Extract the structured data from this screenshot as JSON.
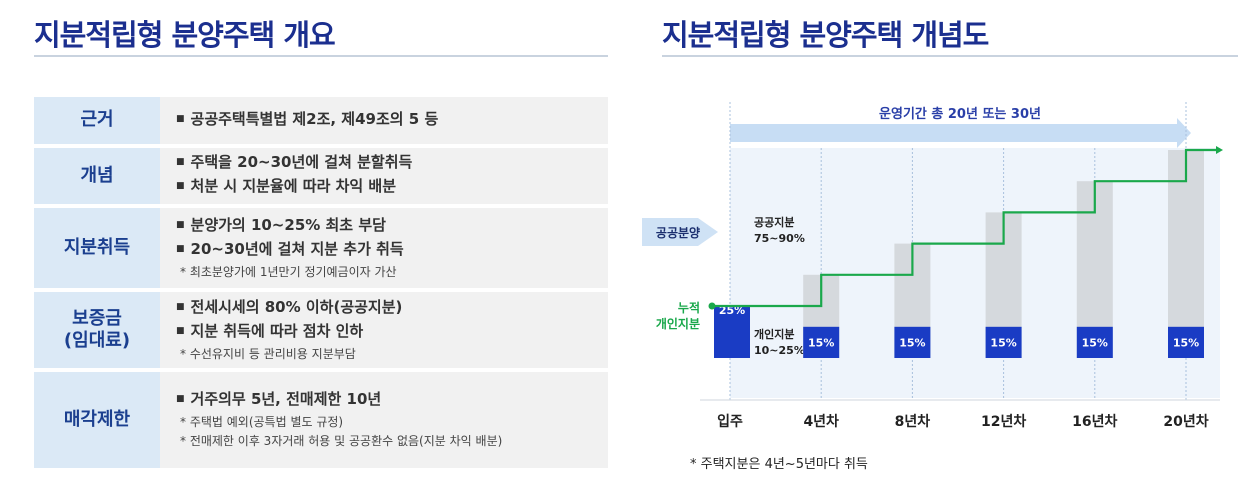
{
  "left": {
    "title": "지분적립형 분양주택 개요",
    "rows": [
      {
        "head": "근거",
        "bullets": [
          "공공주택특별법 제2조, 제49조의 5 등"
        ],
        "notes": []
      },
      {
        "head": "개념",
        "bullets": [
          "주택을 20~30년에 걸쳐 분할취득",
          "처분 시 지분율에 따라 차익 배분"
        ],
        "notes": []
      },
      {
        "head": "지분취득",
        "bullets": [
          "분양가의 10~25% 최초 부담",
          "20~30년에 걸쳐 지분 추가 취득"
        ],
        "notes": [
          "* 최초분양가에 1년만기 정기예금이자 가산"
        ]
      },
      {
        "head": "보증금\n(임대료)",
        "bullets": [
          "전세시세의 80% 이하(공공지분)",
          "지분 취득에 따라 점차 인하"
        ],
        "notes": [
          "* 수선유지비 등 관리비용 지분부담"
        ]
      },
      {
        "head": "매각제한",
        "bullets": [
          "거주의무 5년, 전매제한 10년"
        ],
        "notes": [
          "* 주택법 예외(공특법 별도 규정)",
          "* 전매제한 이후 3자거래 허용 및 공공환수 없음(지분 차익 배분)"
        ]
      }
    ]
  },
  "right": {
    "title": "지분적립형 분양주택 개념도",
    "period_label": "운영기간 총 20년 또는 30년",
    "public_label": "공공분양",
    "public_share_label": "공공지분",
    "public_share_range": "75~90%",
    "cumulative_label_1": "누적",
    "cumulative_label_2": "개인지분",
    "personal_share_label": "개인지분",
    "personal_share_range": "10~25%",
    "footnote": "* 주택지분은 4년~5년마다 취득"
  },
  "chart_data": {
    "type": "bar",
    "categories": [
      "입주",
      "4년차",
      "8년차",
      "12년차",
      "16년차",
      "20년차"
    ],
    "series": [
      {
        "name": "개인지분",
        "values": [
          25,
          15,
          15,
          15,
          15,
          15
        ],
        "value_labels": [
          "25%",
          "15%",
          "15%",
          "15%",
          "15%",
          "15%"
        ]
      }
    ],
    "cumulative_step": [
      25,
      40,
      55,
      70,
      85,
      100
    ],
    "colors": {
      "share": "#1a3cc4",
      "cumulative_bar": "#d5d9dd",
      "step_line": "#1aa84b",
      "arrow": "#c7ddf4"
    }
  }
}
